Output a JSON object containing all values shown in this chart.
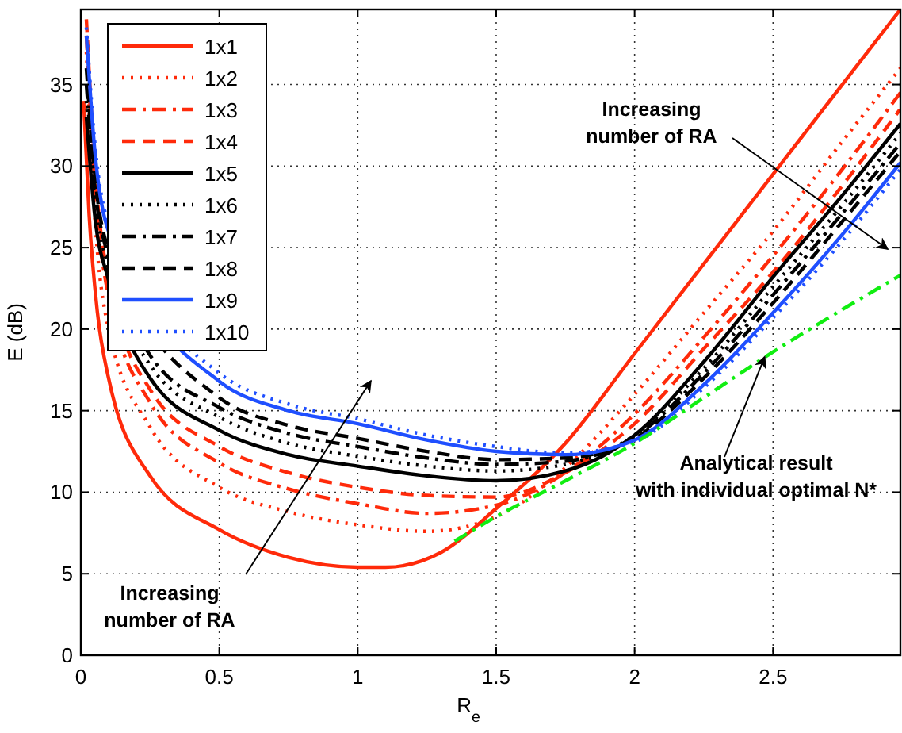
{
  "chart_data": {
    "type": "line",
    "xlabel": "R$_{e}$",
    "ylabel": "E (dB)",
    "xlim": [
      0,
      2.96
    ],
    "ylim": [
      0,
      39.6
    ],
    "xticks": [
      0,
      0.5,
      1,
      1.5,
      2,
      2.5
    ],
    "yticks": [
      0,
      5,
      10,
      15,
      20,
      25,
      30,
      35
    ],
    "grid": true,
    "legend": "top left",
    "x": [
      0.02,
      0.05,
      0.1,
      0.25,
      0.5,
      0.75,
      1,
      1.25,
      1.5,
      1.75,
      2,
      2.25,
      2.5,
      2.75,
      2.96
    ],
    "series": [
      {
        "name": "1x1",
        "color": "#ff2a0a",
        "line_style": "solid",
        "x": [
          0.01,
          0.03,
          0.06,
          0.1,
          0.25,
          0.5,
          0.75,
          1,
          1.1,
          1.3,
          1.5,
          1.75,
          2,
          2.25,
          2.5,
          2.75,
          2.96
        ],
        "values": [
          34,
          27,
          21,
          17,
          11,
          7.7,
          6.0,
          5.4,
          5.4,
          6.3,
          9,
          13,
          18.5,
          24,
          29.5,
          35,
          39.6
        ]
      },
      {
        "name": "1x2",
        "color": "#ff2a0a",
        "line_style": "dotted",
        "values": [
          37,
          27,
          20,
          14,
          10.3,
          8.8,
          8.0,
          7.6,
          8.5,
          11.5,
          16,
          21,
          26,
          31.5,
          36
        ]
      },
      {
        "name": "1x3",
        "color": "#ff2a0a",
        "line_style": "dashdot",
        "values": [
          38,
          29,
          22,
          15.5,
          11.8,
          10.2,
          9.3,
          8.7,
          9.2,
          11.2,
          14.8,
          19.5,
          24.5,
          29.8,
          34.5
        ]
      },
      {
        "name": "1x4",
        "color": "#ff2a0a",
        "line_style": "dashed",
        "values": [
          39,
          30,
          23,
          16.3,
          12.8,
          11.2,
          10.3,
          9.8,
          9.7,
          11.2,
          14.2,
          18.8,
          23.5,
          28.8,
          33.5
        ]
      },
      {
        "name": "1x5",
        "color": "#000000",
        "line_style": "solid",
        "values": [
          33,
          27,
          23,
          17,
          13.8,
          12.3,
          11.6,
          11.0,
          10.7,
          11.3,
          13.5,
          18,
          23.2,
          28.2,
          32.6
        ]
      },
      {
        "name": "1x6",
        "color": "#000000",
        "line_style": "dotted",
        "values": [
          34,
          28,
          23.7,
          17.8,
          14.6,
          13.0,
          12.2,
          11.6,
          11.3,
          11.7,
          13.5,
          17.6,
          22.6,
          27.6,
          32
        ]
      },
      {
        "name": "1x7",
        "color": "#000000",
        "line_style": "dashdot",
        "values": [
          35,
          28.8,
          24.3,
          18.4,
          15.2,
          13.6,
          12.8,
          12.1,
          11.7,
          11.9,
          13.4,
          17.3,
          22.1,
          27.1,
          31.4
        ]
      },
      {
        "name": "1x8",
        "color": "#000000",
        "line_style": "dashed",
        "values": [
          36,
          29.5,
          24.9,
          null,
          15.8,
          14.1,
          13.3,
          12.5,
          12.0,
          12.1,
          13.3,
          17.0,
          21.6,
          26.6,
          30.9
        ]
      },
      {
        "name": "1x9",
        "color": "#1f4fff",
        "line_style": "solid",
        "values": [
          38,
          31,
          26,
          null,
          16.8,
          15.0,
          14.2,
          13.2,
          12.5,
          12.3,
          13.2,
          16.6,
          21.0,
          25.8,
          30.2
        ]
      },
      {
        "name": "1x10",
        "color": "#1f4fff",
        "line_style": "dotted",
        "values": [
          38.5,
          31.5,
          26.5,
          null,
          17.3,
          15.4,
          14.5,
          13.5,
          12.8,
          12.4,
          13.1,
          16.4,
          20.7,
          25.4,
          29.8
        ]
      },
      {
        "color": "#11ee11",
        "line_style": "dashdot",
        "x": [
          1.35,
          1.5,
          1.75,
          2,
          2.25,
          2.5,
          2.75,
          2.96
        ],
        "values": [
          7,
          8.5,
          10.7,
          13,
          15.8,
          18.6,
          21.2,
          23.3
        ]
      }
    ],
    "annotations": [
      "Increasing\nnumber of RA",
      "Increasing\nnumber of RA",
      {
        "text": "Analytical result\nwith individual optimal N*",
        "x": 2.47,
        "y": 18.3
      }
    ]
  }
}
